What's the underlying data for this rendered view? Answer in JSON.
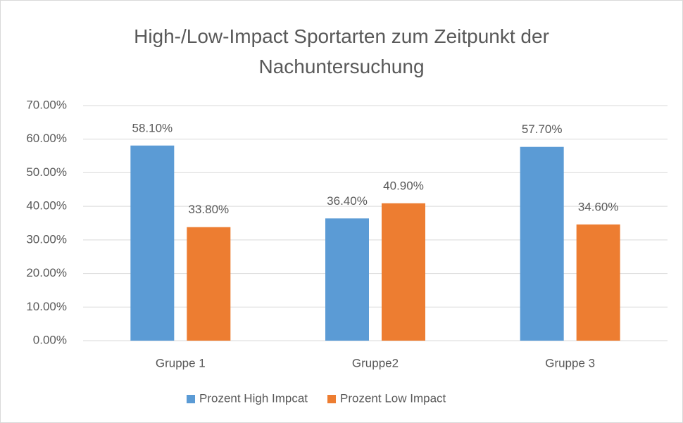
{
  "chart_data": {
    "type": "bar",
    "title": "High-/Low-Impact Sportarten zum Zeitpunkt der Nachuntersuchung",
    "categories": [
      "Gruppe 1",
      "Gruppe2",
      "Gruppe 3"
    ],
    "series": [
      {
        "name": "Prozent High Impcat",
        "color": "#5b9bd5",
        "values": [
          58.1,
          36.4,
          57.7
        ],
        "value_labels": [
          "58.10%",
          "36.40%",
          "57.70%"
        ]
      },
      {
        "name": "Prozent Low Impact",
        "color": "#ed7d31",
        "values": [
          33.8,
          40.9,
          34.6
        ],
        "value_labels": [
          "33.80%",
          "40.90%",
          "34.60%"
        ]
      }
    ],
    "ylim": [
      0,
      70
    ],
    "yticks": [
      {
        "value": 0,
        "label": "0.00%"
      },
      {
        "value": 10,
        "label": "10.00%"
      },
      {
        "value": 20,
        "label": "20.00%"
      },
      {
        "value": 30,
        "label": "30.00%"
      },
      {
        "value": 40,
        "label": "40.00%"
      },
      {
        "value": 50,
        "label": "50.00%"
      },
      {
        "value": 60,
        "label": "60.00%"
      },
      {
        "value": 70,
        "label": "70.00%"
      }
    ],
    "grid": true,
    "legend": "bottom"
  }
}
